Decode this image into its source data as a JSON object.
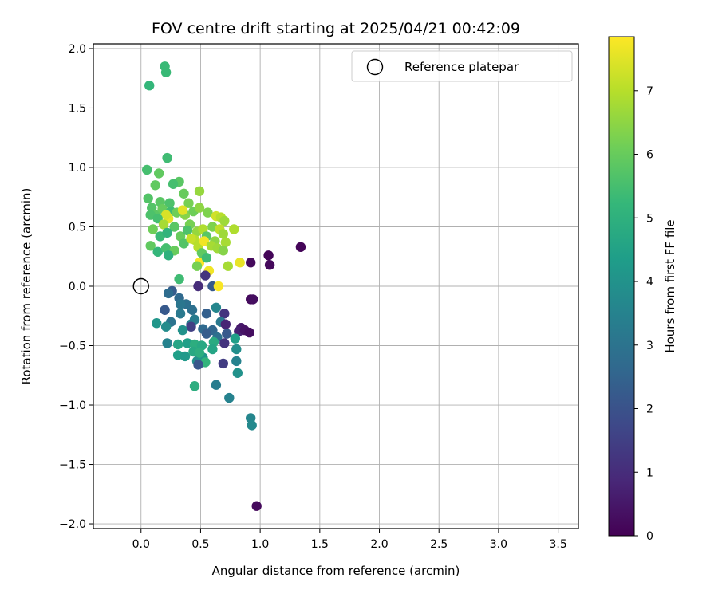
{
  "chart_data": {
    "type": "scatter",
    "title": "FOV centre drift starting at 2025/04/21 00:42:09",
    "xlabel": "Angular distance from reference (arcmin)",
    "ylabel": "Rotation from reference (arcmin)",
    "xlim": [
      -0.4,
      3.67
    ],
    "ylim": [
      -2.04,
      2.04
    ],
    "x_ticks": [
      "0.0",
      "0.5",
      "1.0",
      "1.5",
      "2.0",
      "2.5",
      "3.0",
      "3.5"
    ],
    "y_ticks": [
      "2.0",
      "1.5",
      "1.0",
      "0.5",
      "0.0",
      "−0.5",
      "−1.0",
      "−1.5",
      "−2.0"
    ],
    "grid": true,
    "legend": {
      "label": "Reference platepar",
      "location": "upper right"
    },
    "reference_point": {
      "x": 0.0,
      "y": 0.0
    },
    "colorbar": {
      "label": "Hours from first FF file",
      "colormap": "viridis",
      "range": [
        0,
        7.85
      ],
      "ticks": [
        "0",
        "1",
        "2",
        "3",
        "4",
        "5",
        "6",
        "7"
      ]
    },
    "colormap_stops": [
      "#440154",
      "#482878",
      "#3e4989",
      "#31688e",
      "#26828e",
      "#1f9e89",
      "#35b779",
      "#6ece58",
      "#b5de2b",
      "#fde725"
    ],
    "points": [
      [
        0.07,
        1.69,
        5.2
      ],
      [
        0.2,
        1.85,
        5.3
      ],
      [
        0.21,
        1.8,
        5.3
      ],
      [
        0.22,
        1.08,
        5.4
      ],
      [
        0.05,
        0.98,
        5.5
      ],
      [
        0.15,
        0.95,
        5.9
      ],
      [
        0.32,
        0.88,
        5.8
      ],
      [
        0.12,
        0.85,
        5.9
      ],
      [
        0.27,
        0.86,
        5.5
      ],
      [
        0.49,
        0.8,
        6.6
      ],
      [
        0.36,
        0.78,
        6.0
      ],
      [
        0.06,
        0.74,
        5.7
      ],
      [
        0.16,
        0.71,
        5.8
      ],
      [
        0.24,
        0.7,
        5.6
      ],
      [
        0.4,
        0.7,
        6.2
      ],
      [
        0.09,
        0.66,
        5.7
      ],
      [
        0.12,
        0.6,
        5.8
      ],
      [
        0.18,
        0.65,
        6.0
      ],
      [
        0.25,
        0.63,
        5.4
      ],
      [
        0.3,
        0.62,
        6.1
      ],
      [
        0.37,
        0.6,
        6.4
      ],
      [
        0.44,
        0.63,
        6.1
      ],
      [
        0.49,
        0.66,
        6.5
      ],
      [
        0.56,
        0.62,
        6.3
      ],
      [
        0.63,
        0.59,
        7.3
      ],
      [
        0.67,
        0.58,
        7.0
      ],
      [
        0.7,
        0.55,
        6.7
      ],
      [
        0.23,
        0.57,
        7.6
      ],
      [
        0.35,
        0.64,
        7.5
      ],
      [
        0.21,
        0.6,
        7.4
      ],
      [
        0.08,
        0.6,
        5.6
      ],
      [
        0.14,
        0.57,
        5.5
      ],
      [
        0.1,
        0.48,
        6.1
      ],
      [
        0.19,
        0.52,
        6.8
      ],
      [
        0.28,
        0.5,
        5.8
      ],
      [
        0.41,
        0.52,
        6.2
      ],
      [
        0.47,
        0.46,
        6.6
      ],
      [
        0.52,
        0.48,
        6.9
      ],
      [
        0.6,
        0.5,
        6.3
      ],
      [
        0.66,
        0.48,
        7.1
      ],
      [
        0.69,
        0.44,
        6.7
      ],
      [
        0.78,
        0.48,
        6.9
      ],
      [
        0.16,
        0.42,
        5.3
      ],
      [
        0.22,
        0.45,
        5.1
      ],
      [
        0.33,
        0.42,
        6.0
      ],
      [
        0.39,
        0.47,
        5.6
      ],
      [
        0.45,
        0.39,
        7.0
      ],
      [
        0.55,
        0.42,
        5.8
      ],
      [
        0.62,
        0.38,
        6.5
      ],
      [
        0.71,
        0.37,
        6.8
      ],
      [
        0.08,
        0.34,
        5.9
      ],
      [
        0.14,
        0.29,
        5.2
      ],
      [
        0.21,
        0.32,
        5.5
      ],
      [
        0.28,
        0.3,
        6.0
      ],
      [
        0.36,
        0.36,
        5.7
      ],
      [
        0.42,
        0.4,
        7.2
      ],
      [
        0.48,
        0.33,
        7.0
      ],
      [
        0.53,
        0.38,
        7.7
      ],
      [
        0.59,
        0.34,
        6.8
      ],
      [
        0.64,
        0.32,
        6.7
      ],
      [
        0.69,
        0.3,
        6.4
      ],
      [
        0.23,
        0.26,
        5.0
      ],
      [
        0.51,
        0.28,
        5.9
      ],
      [
        0.49,
        0.2,
        7.8
      ],
      [
        0.55,
        0.24,
        5.4
      ],
      [
        0.73,
        0.17,
        6.8
      ],
      [
        0.83,
        0.2,
        7.6
      ],
      [
        0.47,
        0.17,
        6.2
      ],
      [
        0.57,
        0.13,
        7.7
      ],
      [
        0.54,
        0.09,
        1.2
      ],
      [
        0.32,
        0.06,
        5.4
      ],
      [
        0.48,
        0.0,
        1.0
      ],
      [
        0.6,
        0.0,
        2.2
      ],
      [
        0.65,
        0.0,
        7.8
      ],
      [
        0.92,
        0.2,
        0.2
      ],
      [
        1.07,
        0.26,
        0.1
      ],
      [
        1.08,
        0.18,
        0.2
      ],
      [
        1.34,
        0.33,
        0.1
      ],
      [
        0.92,
        -0.11,
        0.2
      ],
      [
        0.94,
        -0.11,
        0.3
      ],
      [
        0.26,
        -0.04,
        2.3
      ],
      [
        0.23,
        -0.06,
        2.8
      ],
      [
        0.32,
        -0.1,
        2.7
      ],
      [
        0.38,
        -0.15,
        2.9
      ],
      [
        0.33,
        -0.15,
        3.1
      ],
      [
        0.2,
        -0.2,
        2.2
      ],
      [
        0.43,
        -0.2,
        2.9
      ],
      [
        0.55,
        -0.23,
        2.4
      ],
      [
        0.33,
        -0.23,
        3.2
      ],
      [
        0.63,
        -0.18,
        3.6
      ],
      [
        0.7,
        -0.23,
        1.2
      ],
      [
        0.25,
        -0.3,
        3.0
      ],
      [
        0.13,
        -0.31,
        4.1
      ],
      [
        0.21,
        -0.34,
        3.8
      ],
      [
        0.42,
        -0.32,
        3.4
      ],
      [
        0.45,
        -0.28,
        3.3
      ],
      [
        0.52,
        -0.36,
        2.7
      ],
      [
        0.6,
        -0.37,
        2.6
      ],
      [
        0.67,
        -0.3,
        3.2
      ],
      [
        0.71,
        -0.32,
        0.8
      ],
      [
        0.42,
        -0.34,
        1.5
      ],
      [
        0.35,
        -0.37,
        4.0
      ],
      [
        0.55,
        -0.4,
        2.3
      ],
      [
        0.64,
        -0.43,
        2.9
      ],
      [
        0.72,
        -0.4,
        2.2
      ],
      [
        0.84,
        -0.35,
        0.5
      ],
      [
        0.82,
        -0.38,
        0.7
      ],
      [
        0.87,
        -0.37,
        0.4
      ],
      [
        0.91,
        -0.39,
        0.3
      ],
      [
        0.79,
        -0.44,
        4.4
      ],
      [
        0.22,
        -0.48,
        3.5
      ],
      [
        0.31,
        -0.49,
        4.6
      ],
      [
        0.39,
        -0.48,
        4.4
      ],
      [
        0.45,
        -0.49,
        4.9
      ],
      [
        0.51,
        -0.5,
        4.7
      ],
      [
        0.61,
        -0.47,
        4.8
      ],
      [
        0.7,
        -0.48,
        1.2
      ],
      [
        0.8,
        -0.53,
        3.9
      ],
      [
        0.31,
        -0.58,
        4.4
      ],
      [
        0.37,
        -0.59,
        4.2
      ],
      [
        0.44,
        -0.55,
        4.7
      ],
      [
        0.47,
        -0.63,
        3.9
      ],
      [
        0.52,
        -0.6,
        4.1
      ],
      [
        0.54,
        -0.64,
        5.1
      ],
      [
        0.49,
        -0.56,
        4.9
      ],
      [
        0.6,
        -0.53,
        4.6
      ],
      [
        0.48,
        -0.66,
        2.1
      ],
      [
        0.69,
        -0.65,
        1.4
      ],
      [
        0.8,
        -0.63,
        3.5
      ],
      [
        0.81,
        -0.73,
        4.0
      ],
      [
        0.45,
        -0.84,
        4.9
      ],
      [
        0.63,
        -0.83,
        3.3
      ],
      [
        0.74,
        -0.94,
        3.5
      ],
      [
        0.92,
        -1.11,
        3.6
      ],
      [
        0.93,
        -1.17,
        3.7
      ],
      [
        0.97,
        -1.85,
        0.2
      ]
    ]
  }
}
